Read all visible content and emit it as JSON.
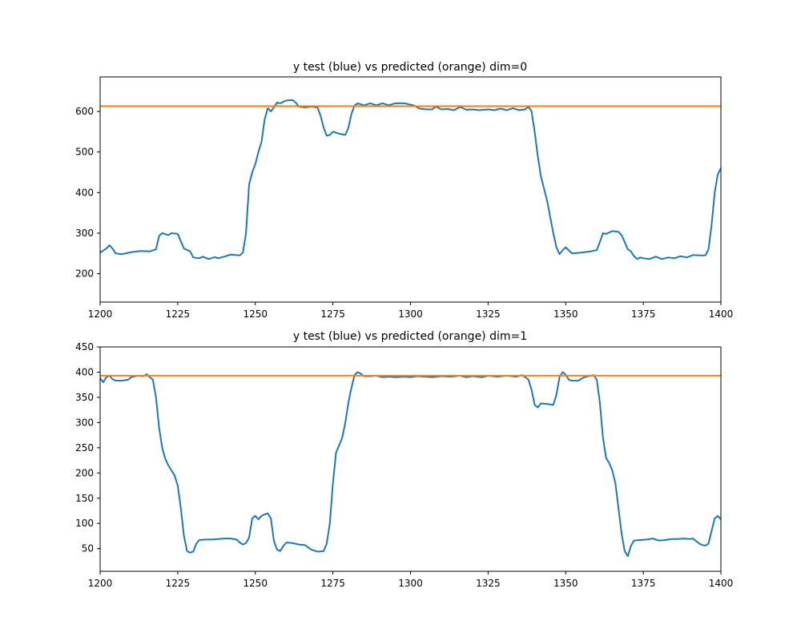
{
  "colors": {
    "actual": "#1f77b4",
    "predicted": "#ff7f0e",
    "axes": "#000000",
    "background": "#ffffff"
  },
  "chart_data": [
    {
      "type": "line",
      "title": "y test (blue) vs predicted (orange) dim=0",
      "xlabel": "",
      "ylabel": "",
      "xlim": [
        1200,
        1400
      ],
      "ylim": [
        130,
        685
      ],
      "xticks": [
        1200,
        1225,
        1250,
        1275,
        1300,
        1325,
        1350,
        1375,
        1400
      ],
      "yticks": [
        200,
        300,
        400,
        500,
        600
      ],
      "grid": false,
      "series": [
        {
          "color": "#1f77b4",
          "points": [
            [
              1200,
              252
            ],
            [
              1202,
              262
            ],
            [
              1203,
              270
            ],
            [
              1204,
              262
            ],
            [
              1205,
              250
            ],
            [
              1207,
              248
            ],
            [
              1210,
              253
            ],
            [
              1213,
              256
            ],
            [
              1216,
              255
            ],
            [
              1218,
              260
            ],
            [
              1219,
              293
            ],
            [
              1220,
              300
            ],
            [
              1222,
              295
            ],
            [
              1223,
              300
            ],
            [
              1225,
              298
            ],
            [
              1226,
              280
            ],
            [
              1227,
              262
            ],
            [
              1229,
              255
            ],
            [
              1230,
              240
            ],
            [
              1232,
              238
            ],
            [
              1233,
              242
            ],
            [
              1235,
              236
            ],
            [
              1237,
              241
            ],
            [
              1238,
              238
            ],
            [
              1240,
              242
            ],
            [
              1242,
              247
            ],
            [
              1245,
              245
            ],
            [
              1246,
              252
            ],
            [
              1247,
              300
            ],
            [
              1248,
              420
            ],
            [
              1249,
              450
            ],
            [
              1250,
              470
            ],
            [
              1251,
              500
            ],
            [
              1252,
              525
            ],
            [
              1253,
              580
            ],
            [
              1254,
              608
            ],
            [
              1255,
              600
            ],
            [
              1256,
              610
            ],
            [
              1257,
              622
            ],
            [
              1258,
              620
            ],
            [
              1260,
              627
            ],
            [
              1262,
              628
            ],
            [
              1263,
              622
            ],
            [
              1264,
              612
            ],
            [
              1266,
              610
            ],
            [
              1268,
              612
            ],
            [
              1270,
              610
            ],
            [
              1271,
              590
            ],
            [
              1272,
              560
            ],
            [
              1273,
              540
            ],
            [
              1274,
              542
            ],
            [
              1275,
              550
            ],
            [
              1277,
              545
            ],
            [
              1279,
              542
            ],
            [
              1280,
              560
            ],
            [
              1281,
              595
            ],
            [
              1282,
              615
            ],
            [
              1283,
              620
            ],
            [
              1285,
              615
            ],
            [
              1287,
              620
            ],
            [
              1289,
              615
            ],
            [
              1291,
              620
            ],
            [
              1293,
              615
            ],
            [
              1295,
              620
            ],
            [
              1298,
              620
            ],
            [
              1301,
              615
            ],
            [
              1303,
              607
            ],
            [
              1305,
              605
            ],
            [
              1307,
              605
            ],
            [
              1308,
              612
            ],
            [
              1310,
              605
            ],
            [
              1312,
              606
            ],
            [
              1314,
              603
            ],
            [
              1316,
              611
            ],
            [
              1318,
              604
            ],
            [
              1320,
              605
            ],
            [
              1322,
              603
            ],
            [
              1325,
              605
            ],
            [
              1327,
              603
            ],
            [
              1329,
              607
            ],
            [
              1331,
              603
            ],
            [
              1333,
              608
            ],
            [
              1335,
              603
            ],
            [
              1337,
              605
            ],
            [
              1338,
              612
            ],
            [
              1339,
              600
            ],
            [
              1340,
              550
            ],
            [
              1341,
              490
            ],
            [
              1342,
              440
            ],
            [
              1343,
              410
            ],
            [
              1344,
              380
            ],
            [
              1345,
              340
            ],
            [
              1346,
              300
            ],
            [
              1347,
              265
            ],
            [
              1348,
              248
            ],
            [
              1349,
              258
            ],
            [
              1350,
              265
            ],
            [
              1352,
              250
            ],
            [
              1355,
              252
            ],
            [
              1358,
              255
            ],
            [
              1360,
              258
            ],
            [
              1361,
              278
            ],
            [
              1362,
              300
            ],
            [
              1363,
              298
            ],
            [
              1365,
              305
            ],
            [
              1367,
              303
            ],
            [
              1368,
              295
            ],
            [
              1369,
              278
            ],
            [
              1370,
              260
            ],
            [
              1371,
              255
            ],
            [
              1372,
              243
            ],
            [
              1373,
              236
            ],
            [
              1374,
              240
            ],
            [
              1375,
              238
            ],
            [
              1377,
              236
            ],
            [
              1379,
              242
            ],
            [
              1381,
              236
            ],
            [
              1383,
              240
            ],
            [
              1385,
              238
            ],
            [
              1387,
              243
            ],
            [
              1389,
              240
            ],
            [
              1391,
              246
            ],
            [
              1393,
              245
            ],
            [
              1395,
              245
            ],
            [
              1396,
              260
            ],
            [
              1397,
              320
            ],
            [
              1398,
              400
            ],
            [
              1399,
              445
            ],
            [
              1400,
              460
            ]
          ]
        },
        {
          "color": "#ff7f0e",
          "points": [
            [
              1200,
              613
            ],
            [
              1400,
              613
            ]
          ]
        }
      ]
    },
    {
      "type": "line",
      "title": "y test (blue) vs predicted (orange) dim=1",
      "xlabel": "",
      "ylabel": "",
      "xlim": [
        1200,
        1400
      ],
      "ylim": [
        5,
        450
      ],
      "xticks": [
        1200,
        1225,
        1250,
        1275,
        1300,
        1325,
        1350,
        1375,
        1400
      ],
      "yticks": [
        50,
        100,
        150,
        200,
        250,
        300,
        350,
        400,
        450
      ],
      "grid": false,
      "series": [
        {
          "color": "#1f77b4",
          "points": [
            [
              1200,
              388
            ],
            [
              1201,
              380
            ],
            [
              1202,
              390
            ],
            [
              1203,
              393
            ],
            [
              1204,
              386
            ],
            [
              1205,
              383
            ],
            [
              1207,
              383
            ],
            [
              1209,
              385
            ],
            [
              1210,
              390
            ],
            [
              1212,
              393
            ],
            [
              1214,
              392
            ],
            [
              1215,
              396
            ],
            [
              1216,
              390
            ],
            [
              1217,
              385
            ],
            [
              1218,
              350
            ],
            [
              1219,
              290
            ],
            [
              1220,
              250
            ],
            [
              1221,
              228
            ],
            [
              1222,
              215
            ],
            [
              1224,
              195
            ],
            [
              1225,
              175
            ],
            [
              1226,
              130
            ],
            [
              1227,
              75
            ],
            [
              1228,
              45
            ],
            [
              1229,
              42
            ],
            [
              1230,
              44
            ],
            [
              1231,
              60
            ],
            [
              1232,
              67
            ],
            [
              1234,
              68
            ],
            [
              1236,
              68
            ],
            [
              1238,
              69
            ],
            [
              1240,
              70
            ],
            [
              1242,
              70
            ],
            [
              1244,
              68
            ],
            [
              1245,
              62
            ],
            [
              1246,
              58
            ],
            [
              1247,
              61
            ],
            [
              1248,
              72
            ],
            [
              1249,
              110
            ],
            [
              1250,
              115
            ],
            [
              1251,
              108
            ],
            [
              1252,
              115
            ],
            [
              1253,
              118
            ],
            [
              1254,
              120
            ],
            [
              1255,
              110
            ],
            [
              1256,
              65
            ],
            [
              1257,
              48
            ],
            [
              1258,
              45
            ],
            [
              1259,
              55
            ],
            [
              1260,
              62
            ],
            [
              1262,
              61
            ],
            [
              1264,
              58
            ],
            [
              1266,
              57
            ],
            [
              1268,
              48
            ],
            [
              1270,
              44
            ],
            [
              1272,
              45
            ],
            [
              1273,
              60
            ],
            [
              1274,
              100
            ],
            [
              1275,
              180
            ],
            [
              1276,
              240
            ],
            [
              1277,
              255
            ],
            [
              1278,
              270
            ],
            [
              1279,
              300
            ],
            [
              1280,
              340
            ],
            [
              1281,
              370
            ],
            [
              1282,
              395
            ],
            [
              1283,
              400
            ],
            [
              1284,
              397
            ],
            [
              1285,
              392
            ],
            [
              1287,
              392
            ],
            [
              1289,
              393
            ],
            [
              1291,
              390
            ],
            [
              1293,
              391
            ],
            [
              1295,
              390
            ],
            [
              1298,
              391
            ],
            [
              1300,
              390
            ],
            [
              1302,
              392
            ],
            [
              1305,
              391
            ],
            [
              1307,
              390
            ],
            [
              1310,
              392
            ],
            [
              1313,
              391
            ],
            [
              1316,
              393
            ],
            [
              1318,
              390
            ],
            [
              1320,
              392
            ],
            [
              1323,
              390
            ],
            [
              1325,
              393
            ],
            [
              1328,
              391
            ],
            [
              1331,
              393
            ],
            [
              1334,
              391
            ],
            [
              1336,
              394
            ],
            [
              1337,
              390
            ],
            [
              1338,
              385
            ],
            [
              1339,
              365
            ],
            [
              1340,
              335
            ],
            [
              1341,
              330
            ],
            [
              1342,
              338
            ],
            [
              1344,
              337
            ],
            [
              1346,
              335
            ],
            [
              1347,
              355
            ],
            [
              1348,
              390
            ],
            [
              1349,
              400
            ],
            [
              1350,
              395
            ],
            [
              1351,
              385
            ],
            [
              1352,
              383
            ],
            [
              1354,
              383
            ],
            [
              1356,
              390
            ],
            [
              1358,
              393
            ],
            [
              1359,
              394
            ],
            [
              1360,
              385
            ],
            [
              1361,
              340
            ],
            [
              1362,
              270
            ],
            [
              1363,
              230
            ],
            [
              1364,
              220
            ],
            [
              1365,
              205
            ],
            [
              1366,
              180
            ],
            [
              1367,
              130
            ],
            [
              1368,
              80
            ],
            [
              1369,
              45
            ],
            [
              1370,
              35
            ],
            [
              1371,
              55
            ],
            [
              1372,
              66
            ],
            [
              1374,
              67
            ],
            [
              1376,
              68
            ],
            [
              1378,
              70
            ],
            [
              1380,
              66
            ],
            [
              1382,
              67
            ],
            [
              1384,
              69
            ],
            [
              1386,
              69
            ],
            [
              1388,
              70
            ],
            [
              1390,
              69
            ],
            [
              1391,
              70
            ],
            [
              1392,
              65
            ],
            [
              1393,
              60
            ],
            [
              1394,
              57
            ],
            [
              1395,
              56
            ],
            [
              1396,
              60
            ],
            [
              1397,
              85
            ],
            [
              1398,
              110
            ],
            [
              1399,
              115
            ],
            [
              1400,
              108
            ]
          ]
        },
        {
          "color": "#ff7f0e",
          "points": [
            [
              1200,
              393
            ],
            [
              1400,
              393
            ]
          ]
        }
      ]
    }
  ]
}
